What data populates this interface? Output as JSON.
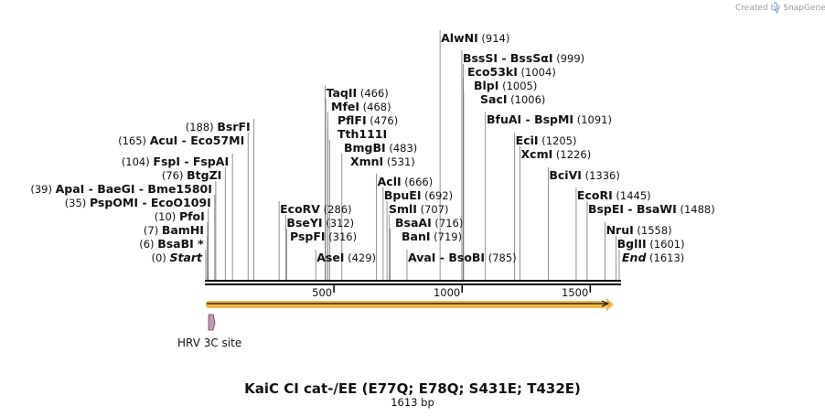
{
  "title": "KaiC CI cat-/EE (E77Q; E78Q; S431E; T432E)",
  "length_label": "1613 bp",
  "credit": "Created by SnapGene",
  "scale_ticks": [
    {
      "value": 500,
      "label": "500"
    },
    {
      "value": 1000,
      "label": "1000"
    },
    {
      "value": 1500,
      "label": "1500"
    }
  ],
  "feature": {
    "name": "HRV 3C site"
  },
  "sites": [
    {
      "text": "Start",
      "pos": 0,
      "poslabel": "(0)",
      "italic": true
    },
    {
      "text": "BsaBI *",
      "pos": 6,
      "poslabel": "(6)"
    },
    {
      "text": "BamHI",
      "pos": 7,
      "poslabel": "(7)"
    },
    {
      "text": "PfoI",
      "pos": 10,
      "poslabel": "(10)"
    },
    {
      "text": "PspOMI  -  EcoO109I",
      "pos": 35,
      "poslabel": "(35)"
    },
    {
      "text": "ApaI  -  BaeGI  -  Bme1580I",
      "pos": 39,
      "poslabel": "(39)"
    },
    {
      "text": "BtgZI",
      "pos": 76,
      "poslabel": "(76)"
    },
    {
      "text": "FspI  -  FspAI",
      "pos": 104,
      "poslabel": "(104)"
    },
    {
      "text": "AcuI  -  Eco57MI",
      "pos": 165,
      "poslabel": "(165)"
    },
    {
      "text": "BsrFI",
      "pos": 188,
      "poslabel": "(188)"
    },
    {
      "text": "PspFI",
      "pos": 316,
      "poslabel": "(316)"
    },
    {
      "text": "BseYI",
      "pos": 312,
      "poslabel": "(312)"
    },
    {
      "text": "EcoRV",
      "pos": 286,
      "poslabel": "(286)"
    },
    {
      "text": "AseI",
      "pos": 429,
      "poslabel": "(429)"
    },
    {
      "text": "TaqII",
      "pos": 466,
      "poslabel": "(466)"
    },
    {
      "text": "MfeI",
      "pos": 468,
      "poslabel": "(468)"
    },
    {
      "text": "PflFI",
      "pos": 476,
      "poslabel": "(476)"
    },
    {
      "text": "Tth111I",
      "pos": 476,
      "poslabel": ""
    },
    {
      "text": "BmgBI",
      "pos": 483,
      "poslabel": "(483)"
    },
    {
      "text": "XmnI",
      "pos": 531,
      "poslabel": "(531)"
    },
    {
      "text": "AclI",
      "pos": 666,
      "poslabel": "(666)"
    },
    {
      "text": "BpuEI",
      "pos": 692,
      "poslabel": "(692)"
    },
    {
      "text": "SmlI",
      "pos": 707,
      "poslabel": "(707)"
    },
    {
      "text": "BsaAI",
      "pos": 716,
      "poslabel": "(716)"
    },
    {
      "text": "BanI",
      "pos": 719,
      "poslabel": "(719)"
    },
    {
      "text": "AvaI  -  BsoBI",
      "pos": 785,
      "poslabel": "(785)"
    },
    {
      "text": "AlwNI",
      "pos": 914,
      "poslabel": "(914)"
    },
    {
      "text": "BssSI  -  BssSαI",
      "pos": 999,
      "poslabel": "(999)"
    },
    {
      "text": "Eco53kI",
      "pos": 1004,
      "poslabel": "(1004)"
    },
    {
      "text": "BlpI",
      "pos": 1005,
      "poslabel": "(1005)"
    },
    {
      "text": "SacI",
      "pos": 1006,
      "poslabel": "(1006)"
    },
    {
      "text": "BfuAI  -  BspMI",
      "pos": 1091,
      "poslabel": "(1091)"
    },
    {
      "text": "EciI",
      "pos": 1205,
      "poslabel": "(1205)"
    },
    {
      "text": "XcmI",
      "pos": 1226,
      "poslabel": "(1226)"
    },
    {
      "text": "BciVI",
      "pos": 1336,
      "poslabel": "(1336)"
    },
    {
      "text": "EcoRI",
      "pos": 1445,
      "poslabel": "(1445)"
    },
    {
      "text": "BspEI  -  BsaWI",
      "pos": 1488,
      "poslabel": "(1488)"
    },
    {
      "text": "NruI",
      "pos": 1558,
      "poslabel": "(1558)"
    },
    {
      "text": "BglII",
      "pos": 1601,
      "poslabel": "(1601)"
    },
    {
      "text": "End",
      "pos": 1613,
      "poslabel": "(1613)",
      "italic": true
    }
  ]
}
